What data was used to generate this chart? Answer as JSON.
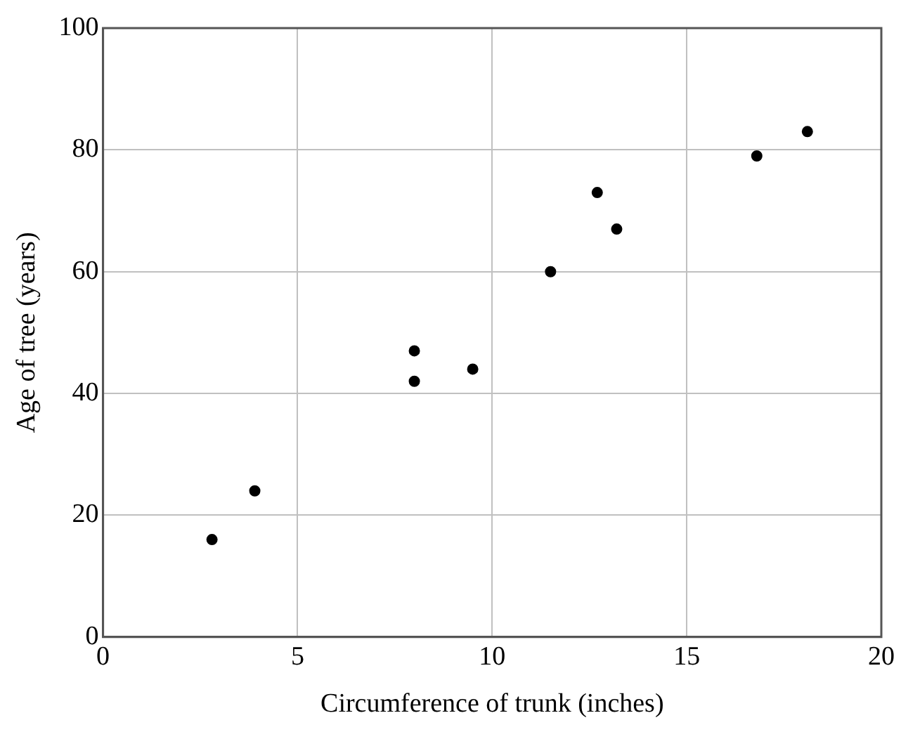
{
  "chart_data": {
    "type": "scatter",
    "xlabel": "Circumference of trunk (inches)",
    "ylabel": "Age of tree (years)",
    "x": [
      2.8,
      3.9,
      8,
      8,
      9.5,
      11.5,
      12.7,
      13.2,
      16.8,
      18.1
    ],
    "values": [
      16,
      24,
      47,
      42,
      44,
      60,
      73,
      67,
      79,
      83
    ],
    "color": "#000000",
    "marker": "circle",
    "xlim": [
      0,
      20
    ],
    "xticks": [
      0,
      5,
      10,
      15,
      20
    ],
    "ylim": [
      0,
      100
    ],
    "yticks": [
      0,
      20,
      40,
      60,
      80,
      100
    ],
    "grid": true,
    "legend": false
  }
}
